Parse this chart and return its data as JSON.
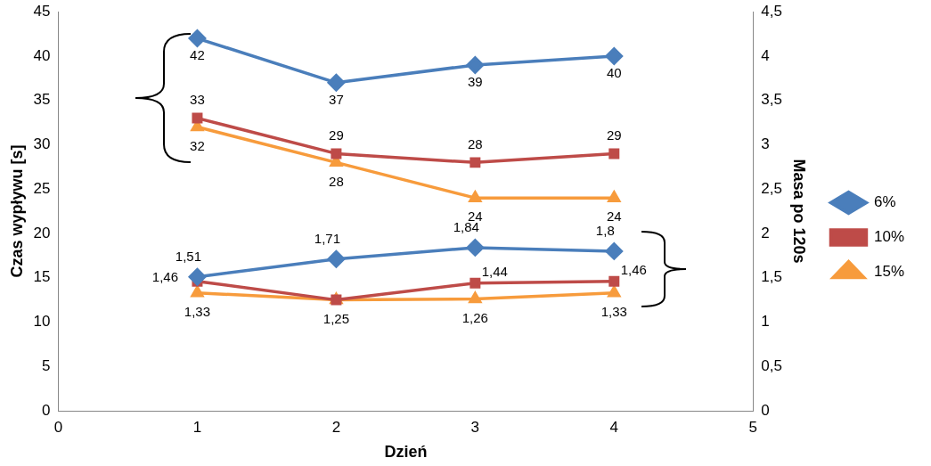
{
  "chart_data": {
    "type": "line",
    "xlabel": "Dzień",
    "ylabel": "Czas wypływu [s]",
    "y2label": "Masa po 120s",
    "x": [
      1,
      2,
      3,
      4
    ],
    "xlim": [
      0,
      5
    ],
    "xticks": [
      0,
      1,
      2,
      3,
      4,
      5
    ],
    "ylim": [
      0,
      45
    ],
    "yticks": [
      0,
      5,
      10,
      15,
      20,
      25,
      30,
      35,
      40,
      45
    ],
    "y2lim": [
      0,
      4.5
    ],
    "y2ticks": [
      0,
      {
        "value": 0.5,
        "label": "0,5"
      },
      1,
      {
        "value": 1.5,
        "label": "1,5"
      },
      2,
      {
        "value": 2.5,
        "label": "2,5"
      },
      3,
      {
        "value": 3.5,
        "label": "3,5"
      },
      4,
      {
        "value": 4.5,
        "label": "4,5"
      }
    ],
    "grid": false,
    "legend": "right",
    "series": [
      {
        "name": "6%",
        "color": "#4a7ebb",
        "marker": "diamond",
        "values": [
          42,
          37,
          39,
          40
        ],
        "value_labels": [
          "42",
          "37",
          "39",
          "40"
        ]
      },
      {
        "name": "10%",
        "color": "#be4b48",
        "marker": "square",
        "values": [
          33,
          29,
          28,
          29
        ],
        "value_labels": [
          "33",
          "29",
          "28",
          "29"
        ]
      },
      {
        "name": "15%",
        "color": "#f79b3c",
        "marker": "triangle",
        "values": [
          32,
          28,
          24,
          24
        ],
        "value_labels": [
          "32",
          "28",
          "24",
          "24"
        ]
      },
      {
        "color": "#4a7ebb",
        "marker": "diamond",
        "axis": "y2",
        "values": [
          1.51,
          1.71,
          1.84,
          1.8
        ],
        "value_labels": [
          "1,51",
          "1,71",
          "1,84",
          "1,8"
        ]
      },
      {
        "color": "#be4b48",
        "marker": "square",
        "axis": "y2",
        "values": [
          1.46,
          1.25,
          1.44,
          1.46
        ],
        "value_labels": [
          "1,46",
          null,
          "1,44",
          "1,46"
        ]
      },
      {
        "color": "#f79b3c",
        "marker": "triangle",
        "axis": "y2",
        "values": [
          1.33,
          1.25,
          1.26,
          1.33
        ],
        "value_labels": [
          "1,33",
          "1,25",
          "1,26",
          "1,33"
        ]
      }
    ]
  }
}
